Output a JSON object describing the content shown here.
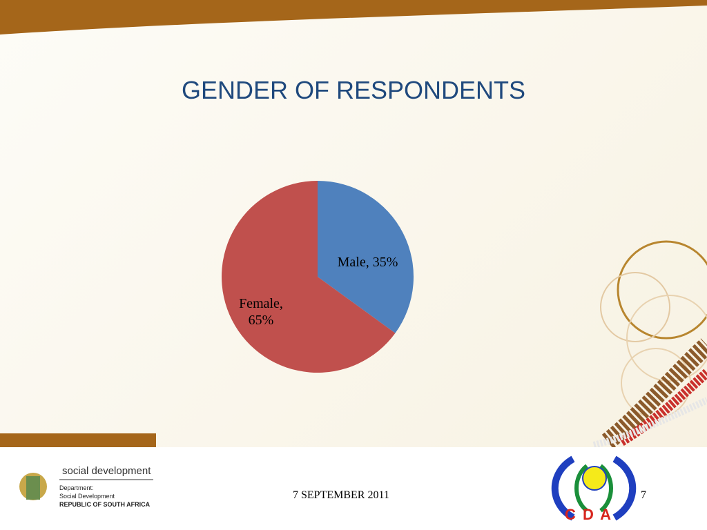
{
  "chart_data": {
    "type": "pie",
    "title": "GENDER OF RESPONDENTS",
    "categories": [
      "Male",
      "Female"
    ],
    "values": [
      35,
      65
    ],
    "value_labels": [
      "Male, 35%",
      "Female, 65%"
    ],
    "colors": [
      "#4f81bd",
      "#c0504d"
    ]
  },
  "footer": {
    "date": "7 SEPTEMBER 2011",
    "page": "7",
    "logo_title": "social development",
    "department": [
      "Department:",
      "Social Development",
      "REPUBLIC OF SOUTH AFRICA"
    ],
    "cda": "C D A"
  }
}
